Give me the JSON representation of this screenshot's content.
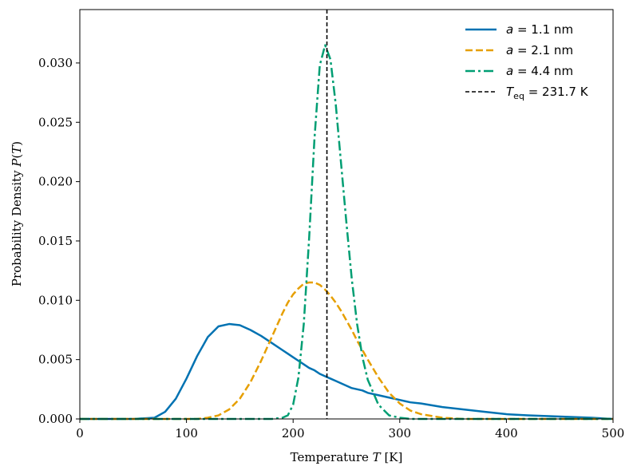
{
  "chart_data": {
    "type": "line",
    "title": "",
    "xlabel": "Temperature T [K]",
    "xlabel_parts": [
      "Temperature ",
      "T",
      " [K]"
    ],
    "ylabel": "Probability Density P(T)",
    "ylabel_parts": [
      "Probability Density ",
      "P",
      "(",
      "T",
      ")"
    ],
    "xlim": [
      0,
      500
    ],
    "ylim": [
      0,
      0.0345
    ],
    "xticks": [
      0,
      100,
      200,
      300,
      400,
      500
    ],
    "xtick_labels": [
      "0",
      "100",
      "200",
      "300",
      "400",
      "500"
    ],
    "yticks": [
      0,
      0.005,
      0.01,
      0.015,
      0.02,
      0.025,
      0.03
    ],
    "ytick_labels": [
      "0.000",
      "0.005",
      "0.010",
      "0.015",
      "0.020",
      "0.025",
      "0.030"
    ],
    "grid": false,
    "legend_position": "top-right",
    "x": [
      0,
      50,
      70,
      80,
      90,
      100,
      110,
      120,
      130,
      140,
      150,
      160,
      170,
      180,
      190,
      195,
      200,
      205,
      210,
      215,
      220,
      225,
      230,
      235,
      240,
      245,
      250,
      255,
      260,
      265,
      270,
      280,
      290,
      300,
      310,
      320,
      340,
      360,
      380,
      400,
      420,
      450,
      480,
      500
    ],
    "series": [
      {
        "name": "a = 1.1 nm",
        "label_parts": [
          "a",
          " = 1.1 nm"
        ],
        "color": "#0072B2",
        "style": "solid",
        "values": [
          0,
          0,
          0.0001,
          0.0006,
          0.0017,
          0.0034,
          0.0053,
          0.0069,
          0.0078,
          0.008,
          0.0079,
          0.0075,
          0.007,
          0.0064,
          0.0058,
          0.0055,
          0.0052,
          0.0049,
          0.0046,
          0.0043,
          0.0041,
          0.0038,
          0.0036,
          0.0034,
          0.0032,
          0.003,
          0.0028,
          0.0026,
          0.0025,
          0.0024,
          0.0022,
          0.002,
          0.0018,
          0.0016,
          0.0014,
          0.0013,
          0.001,
          0.0008,
          0.0006,
          0.0004,
          0.0003,
          0.0002,
          0.0001,
          0.0
        ]
      },
      {
        "name": "a = 2.1 nm",
        "label_parts": [
          "a",
          " = 2.1 nm"
        ],
        "color": "#E69F00",
        "style": "dashed",
        "values": [
          0,
          0,
          0,
          0,
          0,
          0,
          0,
          0.0001,
          0.0003,
          0.0008,
          0.0017,
          0.0031,
          0.0049,
          0.0069,
          0.0089,
          0.0098,
          0.0105,
          0.011,
          0.0114,
          0.0115,
          0.0115,
          0.0113,
          0.0109,
          0.0104,
          0.0098,
          0.0091,
          0.0083,
          0.0075,
          0.0066,
          0.0058,
          0.005,
          0.0035,
          0.0022,
          0.0013,
          0.0007,
          0.0004,
          0.0001,
          0,
          0,
          0,
          0,
          0,
          0,
          0
        ]
      },
      {
        "name": "a = 4.4 nm",
        "label_parts": [
          "a",
          " = 4.4 nm"
        ],
        "color": "#009E73",
        "style": "dashdot",
        "values": [
          0,
          0,
          0,
          0,
          0,
          0,
          0,
          0,
          0,
          0,
          0,
          0,
          0,
          0,
          0.0001,
          0.0003,
          0.0012,
          0.0035,
          0.008,
          0.0152,
          0.0236,
          0.0298,
          0.0315,
          0.0303,
          0.0265,
          0.0215,
          0.0165,
          0.0118,
          0.008,
          0.0052,
          0.0033,
          0.0012,
          0.0003,
          0.0001,
          0,
          0,
          0,
          0,
          0,
          0,
          0,
          0,
          0,
          0
        ]
      }
    ],
    "vline": {
      "x": 231.7,
      "name": "T_eq = 231.7 K",
      "label_parts": [
        "T",
        "eq",
        " = 231.7 K"
      ],
      "color": "#000000",
      "style": "dashed"
    }
  }
}
